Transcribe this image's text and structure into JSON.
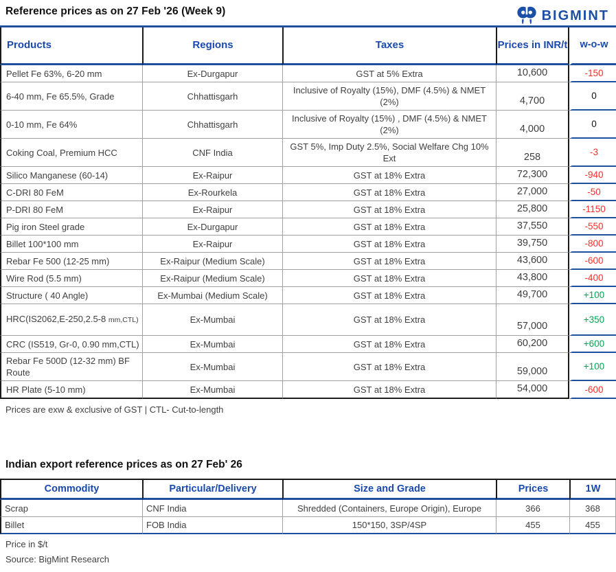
{
  "header": {
    "title": "Reference prices as on 27 Feb '26 (Week 9)",
    "logo_text": "BIGMINT"
  },
  "colors": {
    "accent_blue_text": "#1a49ae",
    "border_blue": "#1f4e9c",
    "negative_red": "#fa2b2b",
    "positive_green": "#00a651",
    "body_text": "#3f3f3f",
    "logo_blue": "#1b4fa8"
  },
  "price_table": {
    "columns": [
      "Products",
      "Regions",
      "Taxes",
      "Prices in INR/t",
      "w-o-w"
    ],
    "rows": [
      {
        "product": "Pellet Fe 63%, 6-20 mm",
        "region": "Ex-Durgapur",
        "taxes": "GST at 5% Extra",
        "price": "10,600",
        "wow": "-150"
      },
      {
        "product": "6-40 mm, Fe 65.5%,  Grade",
        "region": "Chhattisgarh",
        "taxes": "Inclusive of Royalty (15%), DMF (4.5%) & NMET (2%)",
        "price": "4,700",
        "wow": "0"
      },
      {
        "product": "0-10 mm, Fe 64%",
        "region": "Chhattisgarh",
        "taxes": "Inclusive of Royalty (15%) , DMF (4.5%) & NMET (2%)",
        "price": "4,000",
        "wow": "0"
      },
      {
        "product": "Coking Coal, Premium HCC",
        "region": "CNF India",
        "taxes": "GST 5%, Imp Duty 2.5%, Social Welfare Chg 10% Ext",
        "price": "258",
        "wow": "-3"
      },
      {
        "product": "Silico Manganese (60-14)",
        "region": "Ex-Raipur",
        "taxes": "GST at 18% Extra",
        "price": "72,300",
        "wow": "-940"
      },
      {
        "product": "C-DRI 80 FeM",
        "region": "Ex-Rourkela",
        "taxes": "GST at 18% Extra",
        "price": "27,000",
        "wow": "-50"
      },
      {
        "product": "P-DRI 80 FeM",
        "region": "Ex-Raipur",
        "taxes": "GST at 18% Extra",
        "price": "25,800",
        "wow": "-1150"
      },
      {
        "product": "Pig iron Steel grade",
        "region": "Ex-Durgapur",
        "taxes": "GST at 18% Extra",
        "price": "37,550",
        "wow": "-550"
      },
      {
        "product": "Billet 100*100 mm",
        "region": "Ex-Raipur",
        "taxes": "GST at 18% Extra",
        "price": "39,750",
        "wow": "-800"
      },
      {
        "product": "Rebar Fe 500 (12-25 mm)",
        "region": "Ex-Raipur (Medium Scale)",
        "taxes": "GST at 18% Extra",
        "price": "43,600",
        "wow": "-600"
      },
      {
        "product": "Wire Rod (5.5 mm)",
        "region": "Ex-Raipur (Medium Scale)",
        "taxes": "GST at 18% Extra",
        "price": "43,800",
        "wow": "-400"
      },
      {
        "product": "Structure ( 40 Angle)",
        "region": "Ex-Mumbai (Medium Scale)",
        "taxes": "GST at 18% Extra",
        "price": "49,700",
        "wow": "+100"
      },
      {
        "product": "HRC(IS2062,E-250,2.5-8 ",
        "product_small": "mm,CTL)",
        "region": "Ex-Mumbai",
        "taxes": "GST at 18% Extra",
        "price": "57,000",
        "wow": "+350"
      },
      {
        "product": "CRC (IS519, Gr-0, 0.90 mm,CTL)",
        "region": "Ex-Mumbai",
        "taxes": "GST at 18% Extra",
        "price": "60,200",
        "wow": "+600"
      },
      {
        "product": "Rebar Fe 500D (12-32 mm) BF Route",
        "region": "Ex-Mumbai",
        "taxes": "GST at 18% Extra",
        "price": "59,000",
        "wow": "+100"
      },
      {
        "product": "HR Plate (5-10 mm)",
        "region": "Ex-Mumbai",
        "taxes": "GST at 18% Extra",
        "price": "54,000",
        "wow": "-600"
      }
    ],
    "footnote": "Prices are exw & exclusive of GST |  CTL- Cut-to-length"
  },
  "export_table": {
    "title": "Indian export reference prices as on 27 Feb' 26",
    "columns": [
      "Commodity",
      "Particular/Delivery",
      "Size and Grade",
      "Prices",
      "1W"
    ],
    "rows": [
      {
        "commodity": "Scrap",
        "delivery": "CNF India",
        "size_grade": "Shredded (Containers, Europe Origin), Europe",
        "price": "366",
        "one_w": "368"
      },
      {
        "commodity": "Billet",
        "delivery": "FOB India",
        "size_grade": "150*150, 3SP/4SP",
        "price": "455",
        "one_w": "455"
      }
    ],
    "footnotes": [
      "Price in $/t",
      "Source: BigMint Research"
    ]
  }
}
